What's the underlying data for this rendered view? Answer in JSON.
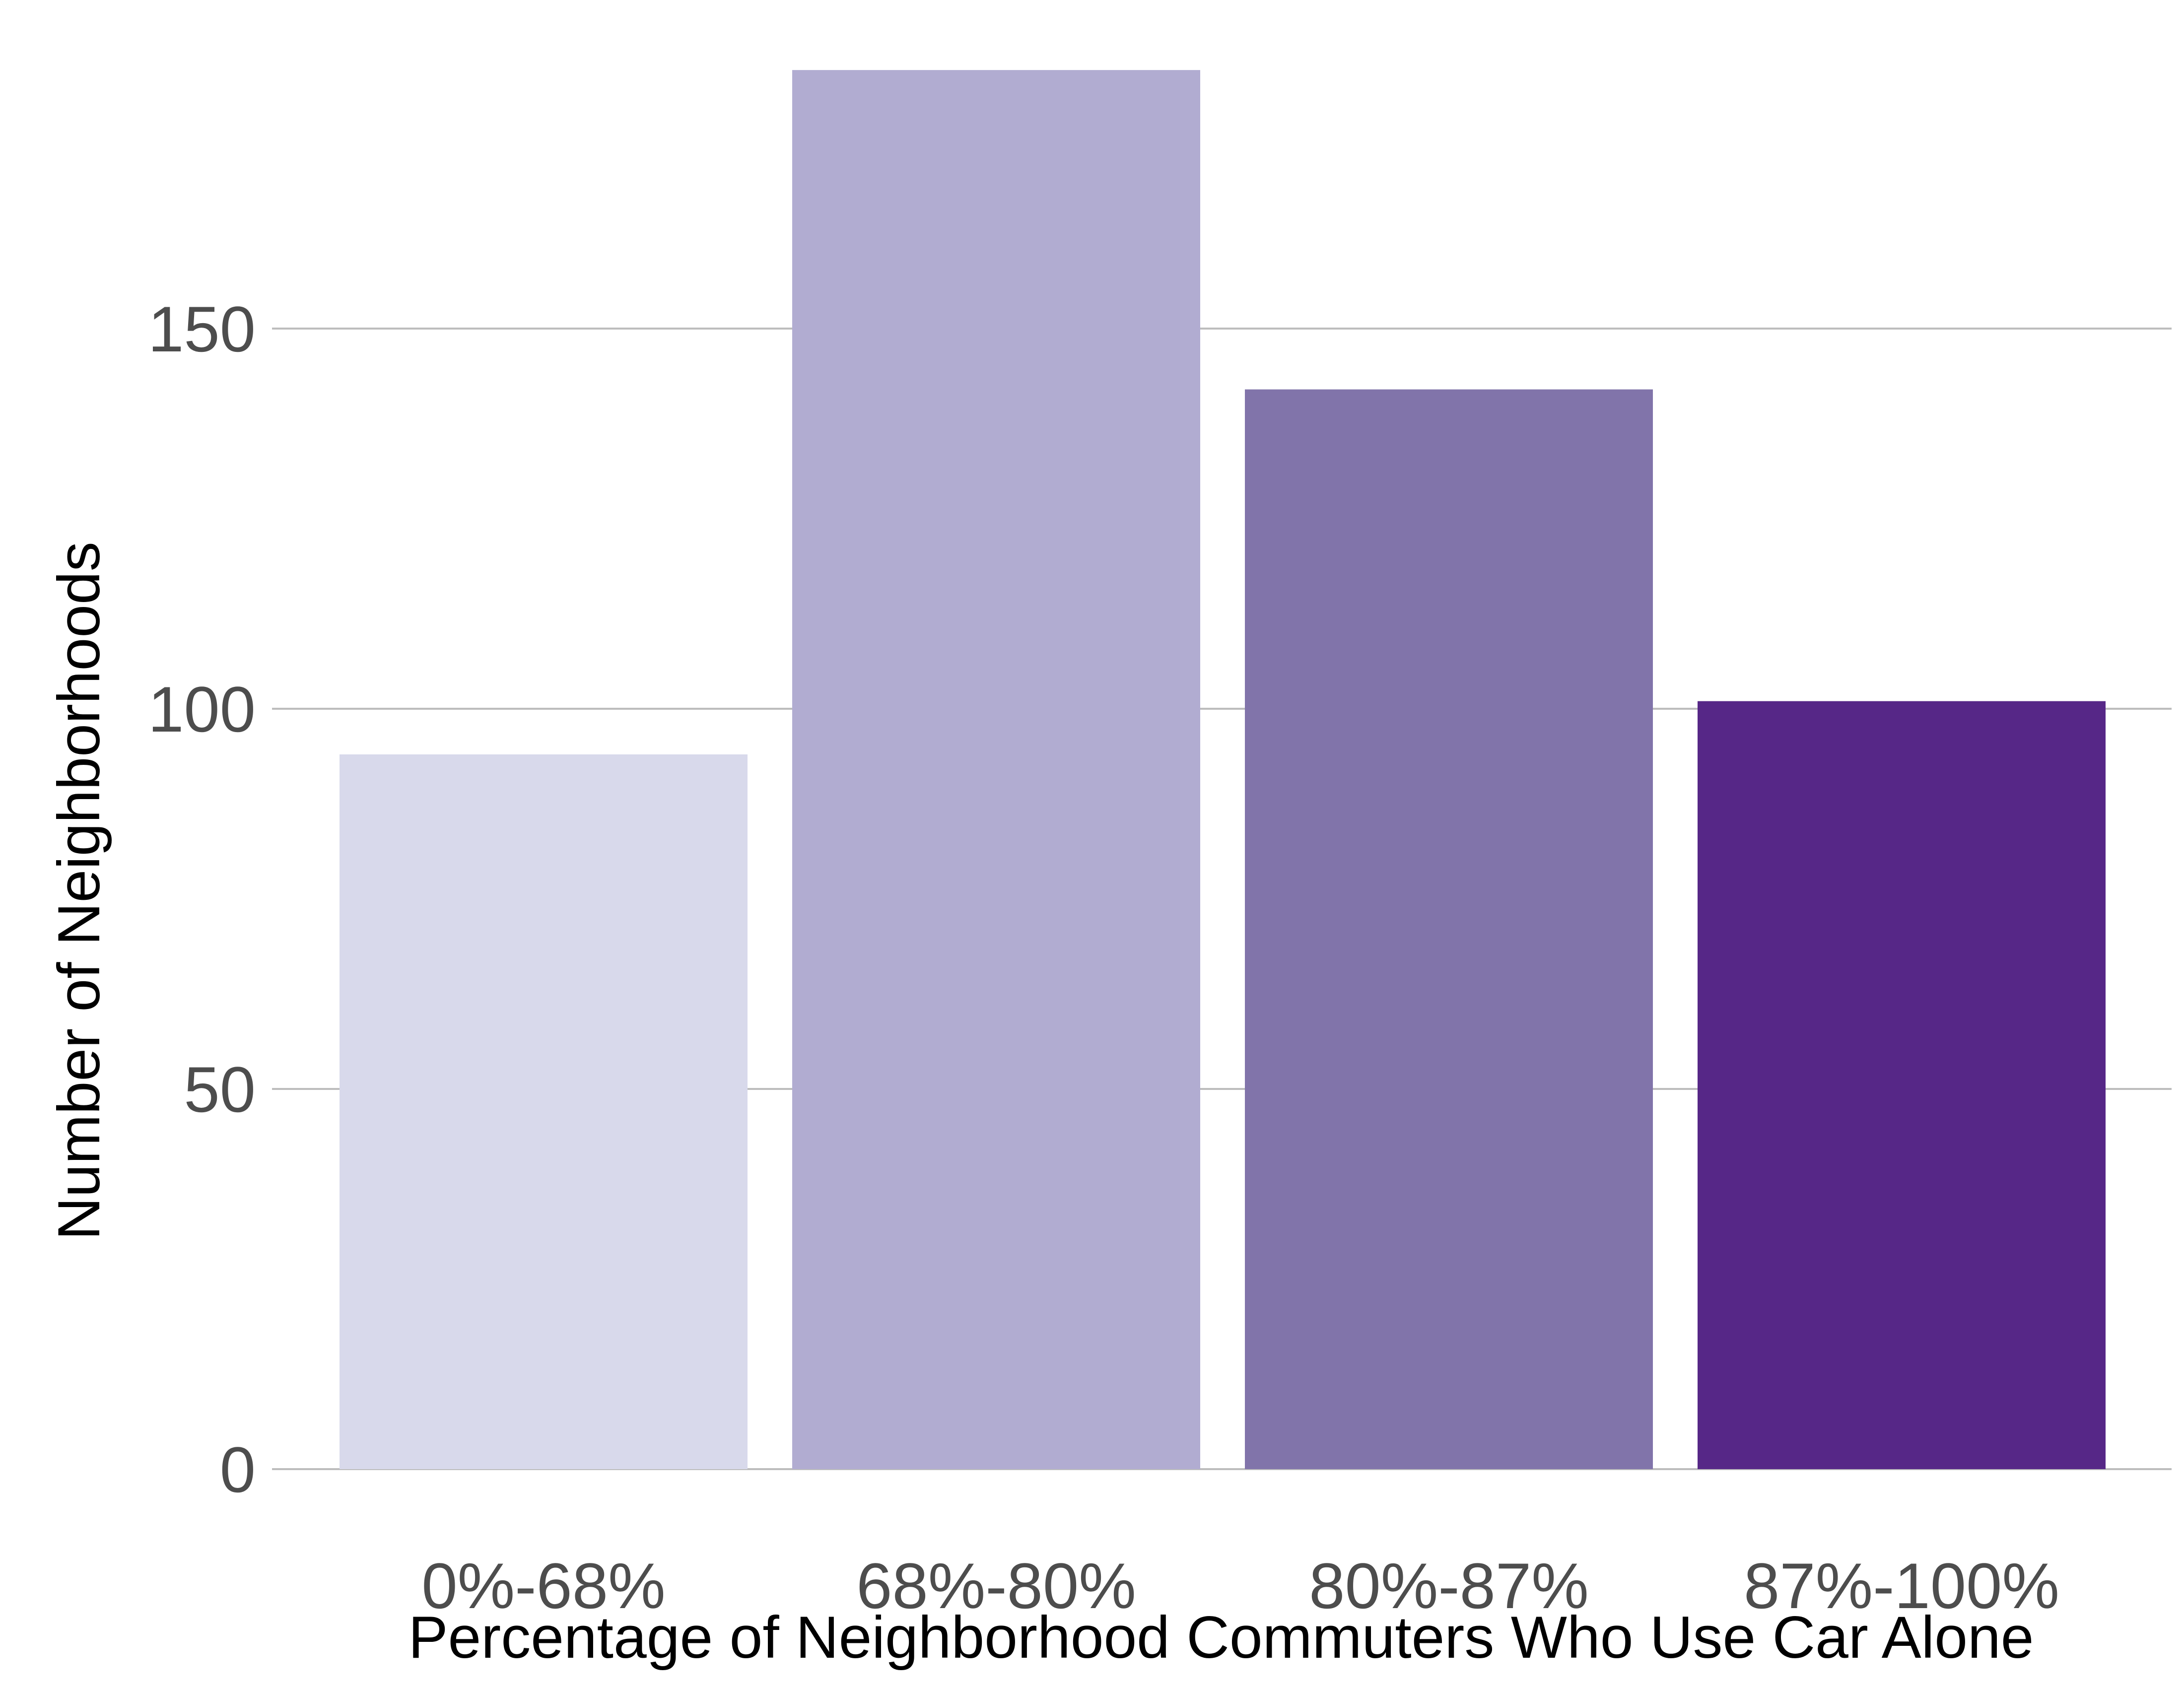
{
  "chart_data": {
    "type": "bar",
    "title": "",
    "xlabel": "Percentage of Neighborhood Commuters Who Use Car Alone",
    "ylabel": "Number of Neighborhoods",
    "categories": [
      "0%-68%",
      "68%-80%",
      "80%-87%",
      "87%-100%"
    ],
    "values": [
      94,
      184,
      142,
      101
    ],
    "colors": [
      "#d8d9eb",
      "#b1acd1",
      "#8174aa",
      "#562787"
    ],
    "ylim": [
      0,
      190
    ],
    "yticks": [
      0,
      50,
      100,
      150
    ],
    "ytick_labels": [
      "0",
      "50",
      "100",
      "150"
    ],
    "grid": true,
    "legend": false
  }
}
